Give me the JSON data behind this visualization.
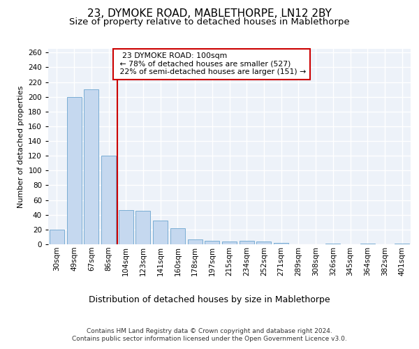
{
  "title1": "23, DYMOKE ROAD, MABLETHORPE, LN12 2BY",
  "title2": "Size of property relative to detached houses in Mablethorpe",
  "xlabel": "Distribution of detached houses by size in Mablethorpe",
  "ylabel": "Number of detached properties",
  "categories": [
    "30sqm",
    "49sqm",
    "67sqm",
    "86sqm",
    "104sqm",
    "123sqm",
    "141sqm",
    "160sqm",
    "178sqm",
    "197sqm",
    "215sqm",
    "234sqm",
    "252sqm",
    "271sqm",
    "289sqm",
    "308sqm",
    "326sqm",
    "345sqm",
    "364sqm",
    "382sqm",
    "401sqm"
  ],
  "values": [
    20,
    200,
    210,
    120,
    46,
    45,
    32,
    22,
    7,
    5,
    4,
    5,
    4,
    2,
    0,
    0,
    1,
    0,
    1,
    0,
    1
  ],
  "bar_color": "#c5d8ef",
  "bar_edge_color": "#7aadd4",
  "vline_x": 4.0,
  "vline_color": "#cc0000",
  "annotation_text": "  23 DYMOKE ROAD: 100sqm  \n ← 78% of detached houses are smaller (527)\n 22% of semi-detached houses are larger (151) →",
  "annotation_box_color": "#ffffff",
  "annotation_box_edge": "#cc0000",
  "ylim": [
    0,
    265
  ],
  "yticks": [
    0,
    20,
    40,
    60,
    80,
    100,
    120,
    140,
    160,
    180,
    200,
    220,
    240,
    260
  ],
  "footer1": "Contains HM Land Registry data © Crown copyright and database right 2024.",
  "footer2": "Contains public sector information licensed under the Open Government Licence v3.0.",
  "bg_color": "#edf2f9",
  "grid_color": "#ffffff",
  "title1_fontsize": 11,
  "title2_fontsize": 9.5,
  "tick_fontsize": 7.5,
  "xlabel_fontsize": 9,
  "ylabel_fontsize": 8,
  "footer_fontsize": 6.5
}
